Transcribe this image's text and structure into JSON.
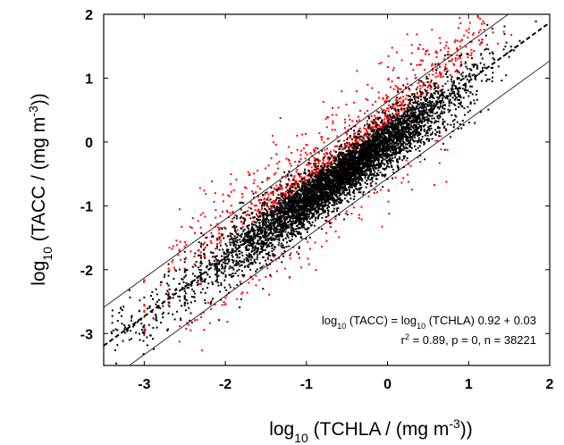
{
  "chart_data": {
    "type": "scatter",
    "xlabel": {
      "base": "log",
      "sub": "10",
      "text": " (TCHLA / (mg m",
      "sup": "-3",
      "tail": "))"
    },
    "ylabel": {
      "base": "log",
      "sub": "10",
      "text": " (TACC / (mg m",
      "sup": "-3",
      "tail": "))"
    },
    "xlim": [
      -3.5,
      2
    ],
    "ylim": [
      -3.5,
      2
    ],
    "xticks": [
      "-3",
      "-2",
      "-1",
      "0",
      "1",
      "2"
    ],
    "yticks": [
      "2",
      "1",
      "0",
      "-1",
      "-2",
      "-3"
    ],
    "grid": false,
    "fit": {
      "slope": 0.92,
      "intercept": 0.03,
      "style": "dashed",
      "color": "#000000"
    },
    "bounds": {
      "offset": 0.6,
      "style": "solid",
      "color": "#000000"
    },
    "series": [
      {
        "color": "#000000",
        "marker": "dot"
      },
      {
        "color": "#ff0000",
        "marker": "dot"
      }
    ],
    "annotation": {
      "line1": {
        "a": "log",
        "a_sub": "10",
        "b": " (TACC) = log",
        "b_sub": "10",
        "c": " (TCHLA) 0.92 + 0.03"
      },
      "line2": {
        "a": "r",
        "a_sup": "2",
        "b": " = 0.89, p = 0, n = 38221"
      }
    }
  }
}
